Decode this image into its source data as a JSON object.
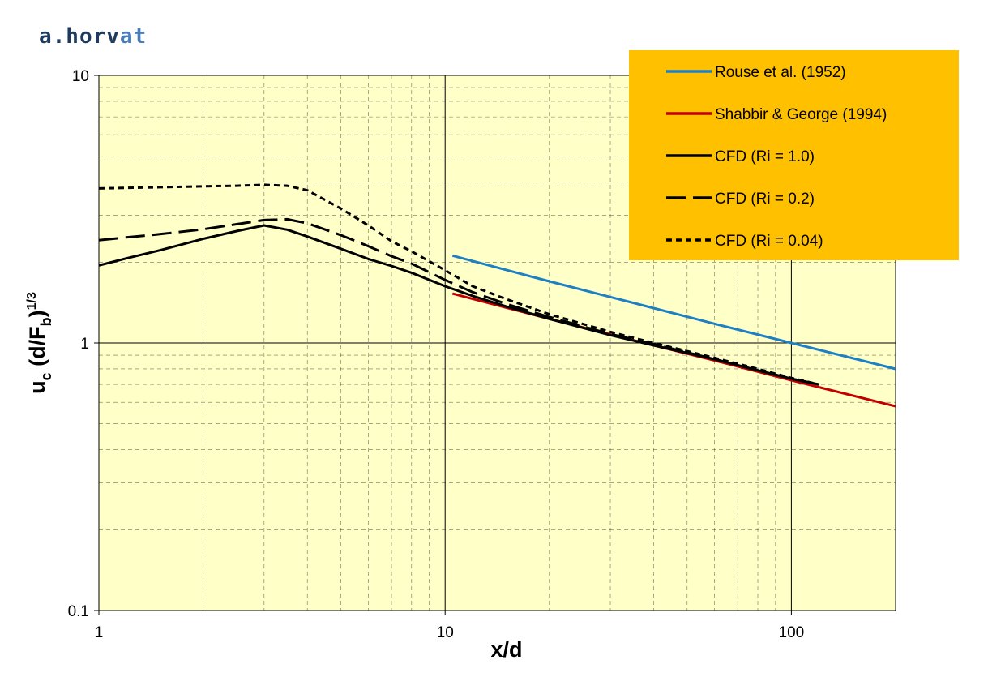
{
  "brand": {
    "part1": "a.horv",
    "part2": "at"
  },
  "chart_data": {
    "type": "line",
    "xscale": "log",
    "yscale": "log",
    "xlim": [
      1,
      200
    ],
    "ylim": [
      0.1,
      10
    ],
    "xticks": [
      {
        "v": 1,
        "label": "1"
      },
      {
        "v": 10,
        "label": "10"
      },
      {
        "v": 100,
        "label": "100"
      }
    ],
    "yticks": [
      {
        "v": 0.1,
        "label": "0.1"
      },
      {
        "v": 1,
        "label": "1"
      },
      {
        "v": 10,
        "label": "10"
      }
    ],
    "xlabel": "x/d",
    "ylabel": {
      "base": "u",
      "sub1": "c",
      "mid": " (d/F",
      "sub2": "b",
      "tail": ")",
      "sup": "1/3"
    },
    "grid": true,
    "legend_position": "top-right",
    "colors": {
      "plot_bg": "#ffffc8",
      "legend_bg": "#ffc000",
      "grid": "#000000"
    },
    "series": [
      {
        "name": "Rouse et al. (1952)",
        "color": "#1f7fc4",
        "dash": "solid",
        "x": [
          10.5,
          20,
          40,
          60,
          100,
          200
        ],
        "y": [
          2.12,
          1.7,
          1.35,
          1.18,
          1.0,
          0.8
        ]
      },
      {
        "name": "Shabbir & George (1994)",
        "color": "#c00000",
        "dash": "solid",
        "x": [
          10.5,
          20,
          40,
          60,
          100,
          200
        ],
        "y": [
          1.53,
          1.23,
          0.98,
          0.86,
          0.725,
          0.58
        ]
      },
      {
        "name": "CFD (Ri = 1.0)",
        "color": "#000000",
        "dash": "solid",
        "x": [
          1,
          1.2,
          1.5,
          2,
          2.5,
          3,
          3.5,
          4,
          5,
          6,
          7,
          8,
          10,
          12,
          15,
          20,
          30,
          40,
          60,
          80,
          100,
          120
        ],
        "y": [
          1.95,
          2.07,
          2.22,
          2.45,
          2.62,
          2.75,
          2.65,
          2.5,
          2.25,
          2.06,
          1.94,
          1.83,
          1.63,
          1.5,
          1.37,
          1.23,
          1.07,
          0.98,
          0.87,
          0.79,
          0.735,
          0.7
        ]
      },
      {
        "name": "CFD (Ri = 0.2)",
        "color": "#000000",
        "dash": "long",
        "x": [
          1,
          1.2,
          1.5,
          2,
          2.5,
          3,
          3.5,
          4,
          5,
          6,
          7,
          8,
          10,
          12,
          15,
          20,
          30,
          40,
          60,
          80,
          100,
          120
        ],
        "y": [
          2.42,
          2.48,
          2.55,
          2.66,
          2.78,
          2.88,
          2.9,
          2.8,
          2.53,
          2.3,
          2.11,
          1.98,
          1.72,
          1.55,
          1.4,
          1.25,
          1.08,
          0.99,
          0.87,
          0.79,
          0.735,
          0.7
        ]
      },
      {
        "name": "CFD (Ri = 0.04)",
        "color": "#000000",
        "dash": "short",
        "x": [
          1,
          1.5,
          2,
          2.5,
          3,
          3.5,
          4,
          5,
          6,
          7,
          8,
          10,
          12,
          15,
          20,
          30,
          40,
          60,
          80,
          100,
          120
        ],
        "y": [
          3.78,
          3.82,
          3.85,
          3.87,
          3.9,
          3.87,
          3.72,
          3.18,
          2.75,
          2.4,
          2.2,
          1.87,
          1.63,
          1.46,
          1.28,
          1.1,
          1.0,
          0.88,
          0.8,
          0.74,
          0.7
        ]
      }
    ]
  }
}
